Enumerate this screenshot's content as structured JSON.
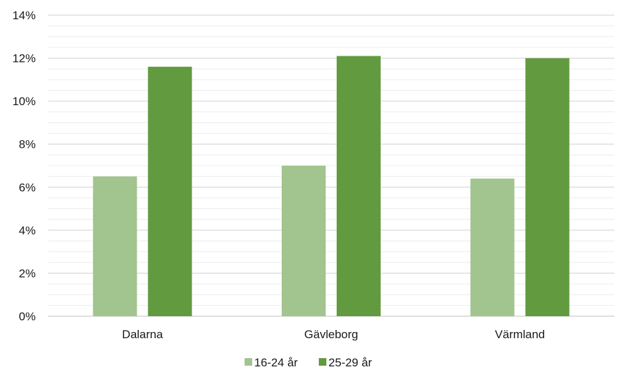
{
  "chart_data": {
    "type": "bar",
    "title": "",
    "xlabel": "",
    "ylabel": "",
    "categories": [
      "Dalarna",
      "Gävleborg",
      "Värmland"
    ],
    "series": [
      {
        "name": "16-24 år",
        "values": [
          6.5,
          7.0,
          6.4
        ],
        "color": "#a2c48e"
      },
      {
        "name": "25-29 år",
        "values": [
          11.6,
          12.1,
          12.0
        ],
        "color": "#629b3f"
      }
    ],
    "ylim": [
      0,
      14
    ],
    "y_ticks": [
      "0%",
      "2%",
      "4%",
      "6%",
      "8%",
      "10%",
      "12%",
      "14%"
    ],
    "y_tick_values": [
      0,
      2,
      4,
      6,
      8,
      10,
      12,
      14
    ],
    "grid": true,
    "legend": "bottom",
    "colors": {
      "major_grid": "#d0d0d0",
      "minor_grid": "#ececec",
      "axis": "#bfbfbf"
    }
  }
}
